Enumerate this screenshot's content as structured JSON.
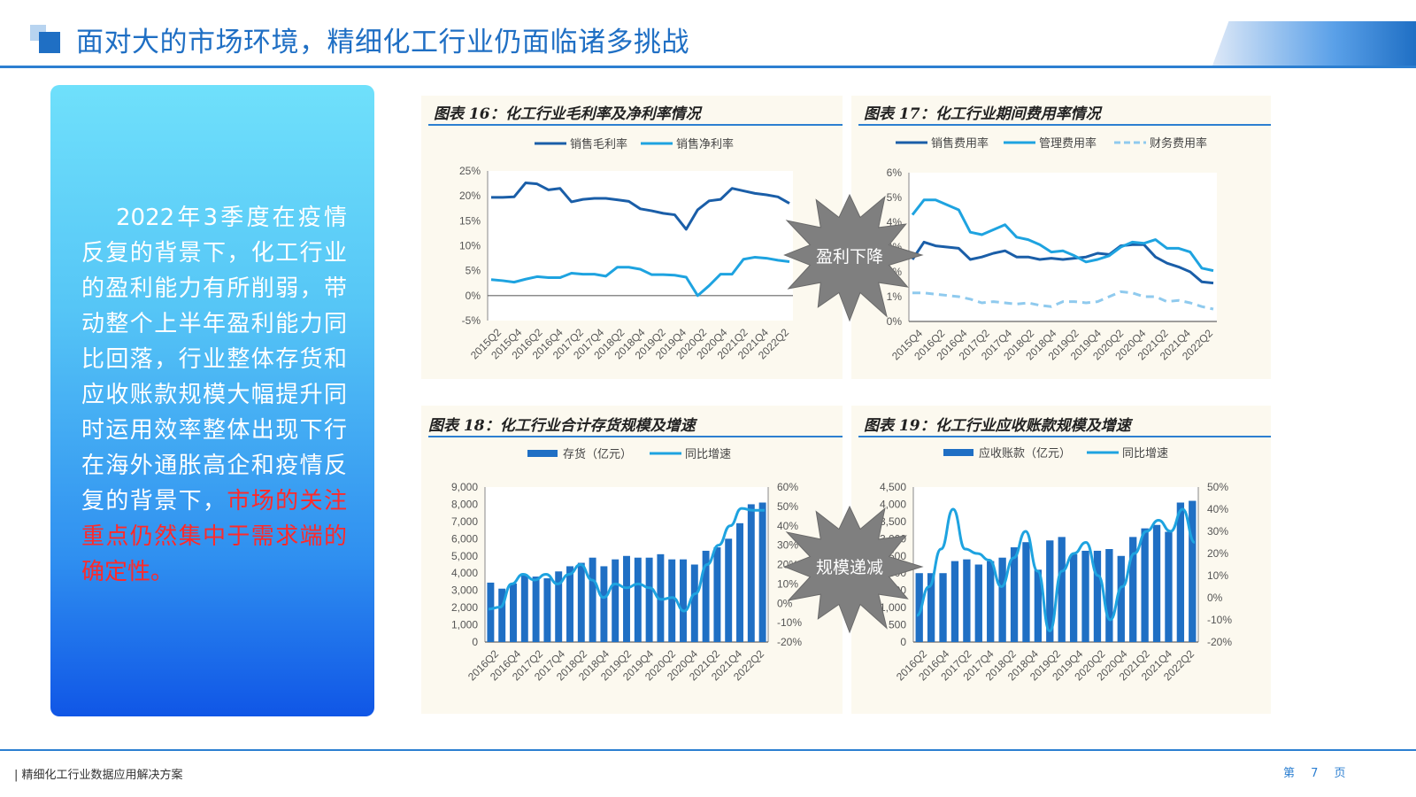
{
  "header": {
    "title": "面对大的市场环境，精细化工行业仍面临诸多挑战"
  },
  "panel": {
    "text_normal": "2022年3季度在疫情反复的背景下，化工行业的盈利能力有所削弱，带动整个上半年盈利能力同比回落，行业整体存货和应收账款规模大幅提升同时运用效率整体出现下行在海外通胀高企和疫情反复的背景下，",
    "text_highlight": "市场的关注重点仍然集中于需求端的确定性。"
  },
  "callouts": {
    "profit": "盈利下降",
    "scale": "规模递减"
  },
  "footer": {
    "left": "| 精细化工行业数据应用解决方案",
    "page": "第 7 页"
  },
  "colors": {
    "dark_blue": "#1a5ea8",
    "light_blue": "#1ea3e0",
    "pale_blue": "#8fcaee",
    "bar_blue": "#1f6fc4"
  },
  "chart_data": [
    {
      "type": "line",
      "title": "图表 16：化工行业毛利率及净利率情况",
      "x_ticks": [
        "2015Q2",
        "2015Q4",
        "2016Q2",
        "2016Q4",
        "2017Q2",
        "2017Q4",
        "2018Q2",
        "2018Q4",
        "2019Q2",
        "2019Q4",
        "2020Q2",
        "2020Q4",
        "2021Q2",
        "2021Q4",
        "2022Q2"
      ],
      "y_ticks": [
        "25%",
        "20%",
        "15%",
        "10%",
        "5%",
        "0%",
        "-5%"
      ],
      "ylim": [
        -5,
        25
      ],
      "series": [
        {
          "name": "销售毛利率",
          "color": "#1a5ea8",
          "values": [
            19.7,
            19.7,
            19.8,
            22.6,
            22.4,
            21.2,
            21.5,
            18.8,
            19.3,
            19.5,
            19.5,
            19.2,
            18.9,
            17.4,
            17.0,
            16.5,
            16.2,
            13.3,
            17.2,
            19.0,
            19.3,
            21.5,
            21.0,
            20.5,
            20.2,
            19.8,
            18.5
          ]
        },
        {
          "name": "销售净利率",
          "color": "#1ea3e0",
          "values": [
            3.2,
            3.0,
            2.7,
            3.3,
            3.8,
            3.6,
            3.6,
            4.5,
            4.3,
            4.3,
            3.9,
            5.7,
            5.7,
            5.3,
            4.2,
            4.2,
            4.1,
            3.7,
            0.0,
            2.0,
            4.3,
            4.3,
            7.3,
            7.7,
            7.5,
            7.1,
            6.8
          ]
        }
      ]
    },
    {
      "type": "line",
      "title": "图表 17：化工行业期间费用率情况",
      "x_ticks": [
        "2015Q4",
        "2016Q2",
        "2016Q4",
        "2017Q2",
        "2017Q4",
        "2018Q2",
        "2018Q4",
        "2019Q2",
        "2019Q4",
        "2020Q2",
        "2020Q4",
        "2021Q2",
        "2021Q4",
        "2022Q2"
      ],
      "y_ticks": [
        "6%",
        "5%",
        "4%",
        "3%",
        "2%",
        "1%",
        "0%"
      ],
      "ylim": [
        0,
        6
      ],
      "series": [
        {
          "name": "销售费用率",
          "color": "#1a5ea8",
          "values": [
            2.5,
            3.2,
            3.05,
            3.0,
            2.95,
            2.5,
            2.6,
            2.75,
            2.85,
            2.6,
            2.6,
            2.5,
            2.55,
            2.5,
            2.55,
            2.6,
            2.75,
            2.7,
            3.05,
            3.1,
            3.1,
            2.6,
            2.35,
            2.2,
            2.0,
            1.6,
            1.55
          ]
        },
        {
          "name": "管理费用率",
          "color": "#1ea3e0",
          "values": [
            4.3,
            4.9,
            4.9,
            4.7,
            4.5,
            3.6,
            3.5,
            3.7,
            3.9,
            3.4,
            3.3,
            3.1,
            2.8,
            2.85,
            2.65,
            2.4,
            2.5,
            2.65,
            3.0,
            3.2,
            3.15,
            3.3,
            2.95,
            2.95,
            2.8,
            2.15,
            2.05
          ]
        },
        {
          "name": "财务费用率",
          "color": "#8fcaee",
          "dashed": true,
          "values": [
            1.15,
            1.15,
            1.1,
            1.05,
            1.0,
            0.9,
            0.75,
            0.8,
            0.75,
            0.7,
            0.75,
            0.65,
            0.6,
            0.8,
            0.8,
            0.75,
            0.8,
            1.0,
            1.2,
            1.15,
            1.0,
            1.0,
            0.8,
            0.85,
            0.75,
            0.6,
            0.5
          ]
        }
      ]
    },
    {
      "type": "bar",
      "title": "图表 18：化工行业合计存货规模及增速",
      "x_ticks": [
        "2016Q2",
        "2016Q4",
        "2017Q2",
        "2017Q4",
        "2018Q2",
        "2018Q4",
        "2019Q2",
        "2019Q4",
        "2020Q2",
        "2020Q4",
        "2021Q2",
        "2021Q4",
        "2022Q2"
      ],
      "y_ticks": [
        "9,000",
        "8,000",
        "7,000",
        "6,000",
        "5,000",
        "4,000",
        "3,000",
        "2,000",
        "1,000",
        "0"
      ],
      "y2_ticks": [
        "60%",
        "50%",
        "40%",
        "30%",
        "20%",
        "10%",
        "0%",
        "-10%",
        "-20%"
      ],
      "ylim": [
        0,
        9000
      ],
      "y2lim": [
        -20,
        60
      ],
      "series": [
        {
          "name": "存货（亿元）",
          "type": "bar",
          "color": "#1f6fc4",
          "values": [
            3450,
            3100,
            3400,
            3900,
            3800,
            3700,
            4100,
            4400,
            4600,
            4900,
            4400,
            4800,
            5000,
            4900,
            4900,
            5100,
            4800,
            4800,
            4500,
            5300,
            5500,
            6000,
            6900,
            8000,
            8100
          ]
        },
        {
          "name": "同比增速",
          "type": "line",
          "color": "#1ea3e0",
          "values": [
            -3,
            -2,
            10,
            15,
            12,
            15,
            10,
            15,
            20,
            12,
            3,
            10,
            8,
            10,
            8,
            2,
            3,
            -4,
            5,
            20,
            30,
            40,
            49,
            48,
            48
          ]
        }
      ]
    },
    {
      "type": "bar",
      "title": "图表 19：化工行业应收账款规模及增速",
      "x_ticks": [
        "2016Q2",
        "2016Q4",
        "2017Q2",
        "2017Q4",
        "2018Q2",
        "2018Q4",
        "2019Q2",
        "2019Q4",
        "2020Q2",
        "2020Q4",
        "2021Q2",
        "2021Q4",
        "2022Q2"
      ],
      "y_ticks": [
        "4,500",
        "4,000",
        "3,500",
        "3,000",
        "2,500",
        "2,000",
        "1,500",
        "1,000",
        "500",
        "0"
      ],
      "y2_ticks": [
        "50%",
        "40%",
        "30%",
        "20%",
        "10%",
        "0%",
        "-10%",
        "-20%"
      ],
      "ylim": [
        0,
        4500
      ],
      "y2lim": [
        -20,
        50
      ],
      "series": [
        {
          "name": "应收账款（亿元）",
          "type": "bar",
          "color": "#1f6fc4",
          "values": [
            2000,
            2000,
            2000,
            2350,
            2400,
            2250,
            2350,
            2450,
            2750,
            2900,
            2100,
            2950,
            3050,
            2550,
            2650,
            2650,
            2700,
            2500,
            3050,
            3300,
            3400,
            3200,
            4050,
            4100
          ]
        },
        {
          "name": "同比增速",
          "type": "line",
          "color": "#1ea3e0",
          "values": [
            -8,
            5,
            22,
            40,
            22,
            20,
            17,
            5,
            18,
            30,
            12,
            -15,
            12,
            20,
            25,
            10,
            -10,
            5,
            20,
            30,
            35,
            30,
            40,
            25
          ]
        }
      ]
    }
  ]
}
